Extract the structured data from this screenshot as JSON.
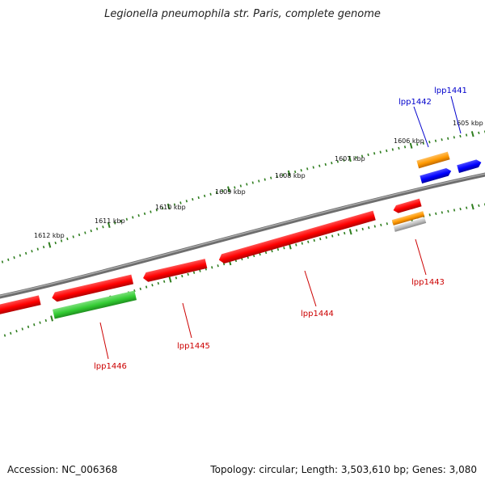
{
  "header": {
    "title": "Legionella pneumophila str. Paris, complete genome"
  },
  "footer": {
    "accession": "Accession: NC_006368",
    "summary": "Topology: circular; Length: 3,503,610 bp; Genes: 3,080"
  },
  "colors": {
    "backbone": "#808080",
    "tick": "#2e7d1e",
    "gene_red": "#ff0000",
    "gene_green": "#33cc33",
    "gene_blue": "#0000ff",
    "gene_orange": "#ff9900",
    "gene_gray": "#bbbbbb",
    "label_red": "#cc0000",
    "label_blue": "#0000cc"
  },
  "scale_labels": [
    {
      "text": "1612 kbp"
    },
    {
      "text": "1611 kbp"
    },
    {
      "text": "1610 kbp"
    },
    {
      "text": "1609 kbp"
    },
    {
      "text": "1608 kbp"
    },
    {
      "text": "1607 kbp"
    },
    {
      "text": "1606 kbp"
    },
    {
      "text": "1605 kbp"
    }
  ],
  "gene_labels": [
    {
      "text": "lpp1441",
      "color": "blue"
    },
    {
      "text": "lpp1442",
      "color": "blue"
    },
    {
      "text": "lpp1443",
      "color": "red"
    },
    {
      "text": "lpp1444",
      "color": "red"
    },
    {
      "text": "lpp1445",
      "color": "red"
    },
    {
      "text": "lpp1446",
      "color": "red"
    }
  ]
}
